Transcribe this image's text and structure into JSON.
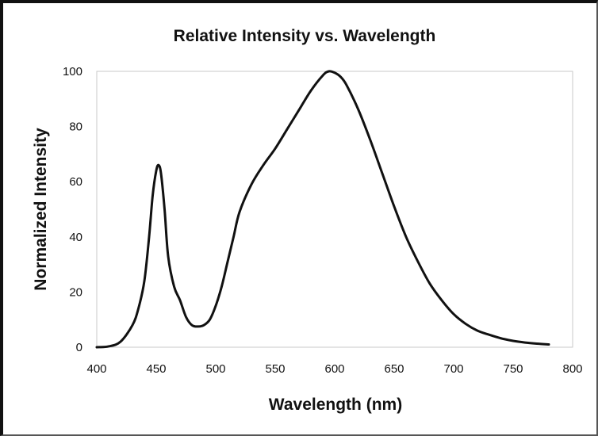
{
  "chart_data": {
    "type": "line",
    "title": "Relative Intensity vs. Wavelength",
    "xlabel": "Wavelength (nm)",
    "ylabel": "Normalized Intensity",
    "xlim": [
      400,
      800
    ],
    "ylim": [
      0,
      100
    ],
    "xticks": [
      400,
      450,
      500,
      550,
      600,
      650,
      700,
      750,
      800
    ],
    "yticks": [
      0,
      20,
      40,
      60,
      80,
      100
    ],
    "grid": false,
    "legend": "none",
    "series": [
      {
        "color": "#111111",
        "x": [
          400,
          410,
          420,
          430,
          435,
          440,
          444,
          447,
          450,
          452,
          454,
          457,
          460,
          465,
          470,
          475,
          480,
          485,
          490,
          495,
          500,
          505,
          510,
          515,
          520,
          530,
          540,
          550,
          560,
          570,
          580,
          590,
          595,
          600,
          605,
          610,
          620,
          630,
          640,
          650,
          660,
          670,
          680,
          690,
          700,
          710,
          720,
          730,
          740,
          750,
          760,
          770,
          780
        ],
        "y": [
          0,
          0.3,
          2,
          8,
          14,
          24,
          40,
          55,
          64,
          66,
          63,
          50,
          33,
          22,
          17,
          11,
          8,
          7.5,
          8,
          10,
          15,
          22,
          31,
          40,
          49,
          59,
          66,
          72,
          79,
          86,
          93,
          98.5,
          100,
          99.5,
          98,
          95,
          86,
          75,
          63,
          51,
          40,
          31,
          23,
          17,
          12,
          8.5,
          6,
          4.5,
          3.2,
          2.3,
          1.7,
          1.3,
          1
        ]
      }
    ]
  }
}
